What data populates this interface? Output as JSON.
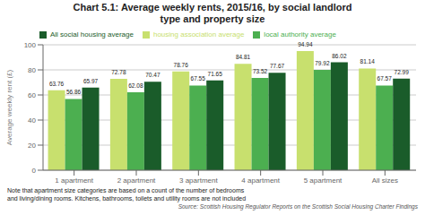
{
  "chart_data": {
    "type": "bar",
    "title": "Chart 5.1: Average weekly rents, 2015/16, by social landlord\ntype and property size",
    "categories": [
      "1 apartment",
      "2 apartment",
      "3 apartment",
      "4 apartment",
      "5 apartment",
      "All sizes"
    ],
    "series": [
      {
        "name": "housing association average",
        "color": "#c8e06e",
        "values": [
          63.76,
          72.78,
          78.76,
          84.81,
          94.94,
          81.14
        ]
      },
      {
        "name": "local authority average",
        "color": "#4caf50",
        "values": [
          56.86,
          62.08,
          67.55,
          73.52,
          79.92,
          67.57
        ]
      },
      {
        "name": "All social housing average",
        "color": "#1a5c2a",
        "values": [
          65.97,
          70.47,
          71.65,
          77.67,
          86.02,
          72.99
        ]
      }
    ],
    "ylabel": "Average weekly rent (£)",
    "ylim": [
      0,
      100
    ],
    "yticks": [
      0,
      20,
      40,
      60,
      80,
      100
    ],
    "grid": true,
    "legend": "top",
    "data_labels": true,
    "annotations": [
      "Note that apartment size categories are based on a count of the number of bedrooms\nand living/dining rooms.  Kitchens, bathrooms, toilets and utility rooms are not included",
      "Source: Scottish Housing Regulator Reports on the Scottish Social Housing Charter Findings"
    ]
  }
}
